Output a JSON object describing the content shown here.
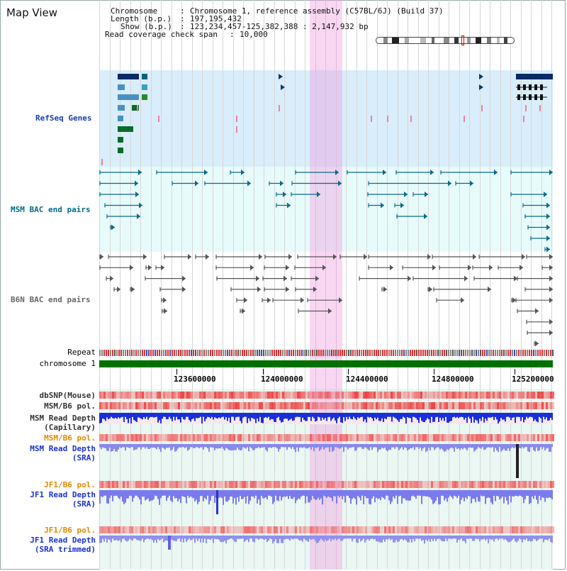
{
  "title": "Map View",
  "info": {
    "chromosome_label": "Chromosome",
    "chromosome_value": "Chromosome 1, reference assembly (C57BL/6J) (Build 37)",
    "length_label": "Length (b.p.)",
    "length_value": "197,195,432",
    "show_label": "Show (b.p.)",
    "show_value": "123,234,457-125,382,388 : 2,147,932 bp",
    "coverage_label": "Read coverage check span",
    "coverage_value": "10,000"
  },
  "tracks": {
    "refseq": "RefSeq Genes",
    "msm_bac": "MSM BAC end pairs",
    "b6n_bac": "B6N BAC end pairs",
    "repeat": "Repeat",
    "chromosome": "chromosome 1"
  },
  "axis_ticks": [
    "123600000",
    "124000000",
    "124400000",
    "124800000",
    "125200000"
  ],
  "lower_tracks": {
    "dbsnp": "dbSNP(Mouse)",
    "msm_b6_pol": "MSM/B6 pol.",
    "msm_read_depth_cap_1": "MSM Read Depth",
    "msm_read_depth_cap_2": "(Capillary)",
    "msm_b6_pol_2": "MSM/B6 pol.",
    "msm_read_depth_sra_1": "MSM Read Depth",
    "msm_read_depth_sra_2": "(SRA)",
    "jf1_b6_pol": "JF1/B6 pol.",
    "jf1_read_depth_sra_1": "JF1 Read Depth",
    "jf1_read_depth_sra_2": "(SRA)",
    "jf1_b6_pol_2": "JF1/B6 pol.",
    "jf1_read_depth_trim_1": "JF1 Read Depth",
    "jf1_read_depth_trim_2": "(SRA trimmed)"
  },
  "colors": {
    "refseq_bg": "#d9eefa",
    "bac_bg": "#e8fbfb",
    "lower_bg": "#eaf7f3",
    "refseq_label": "#1a3fb0",
    "msm_label": "#006a8a",
    "b6n_label": "#666666",
    "pol_label_orange": "#e08a00",
    "read_depth_blue": "#1a33cc",
    "chromosome_green": "#007000",
    "highlight": "#f5b8e6"
  }
}
